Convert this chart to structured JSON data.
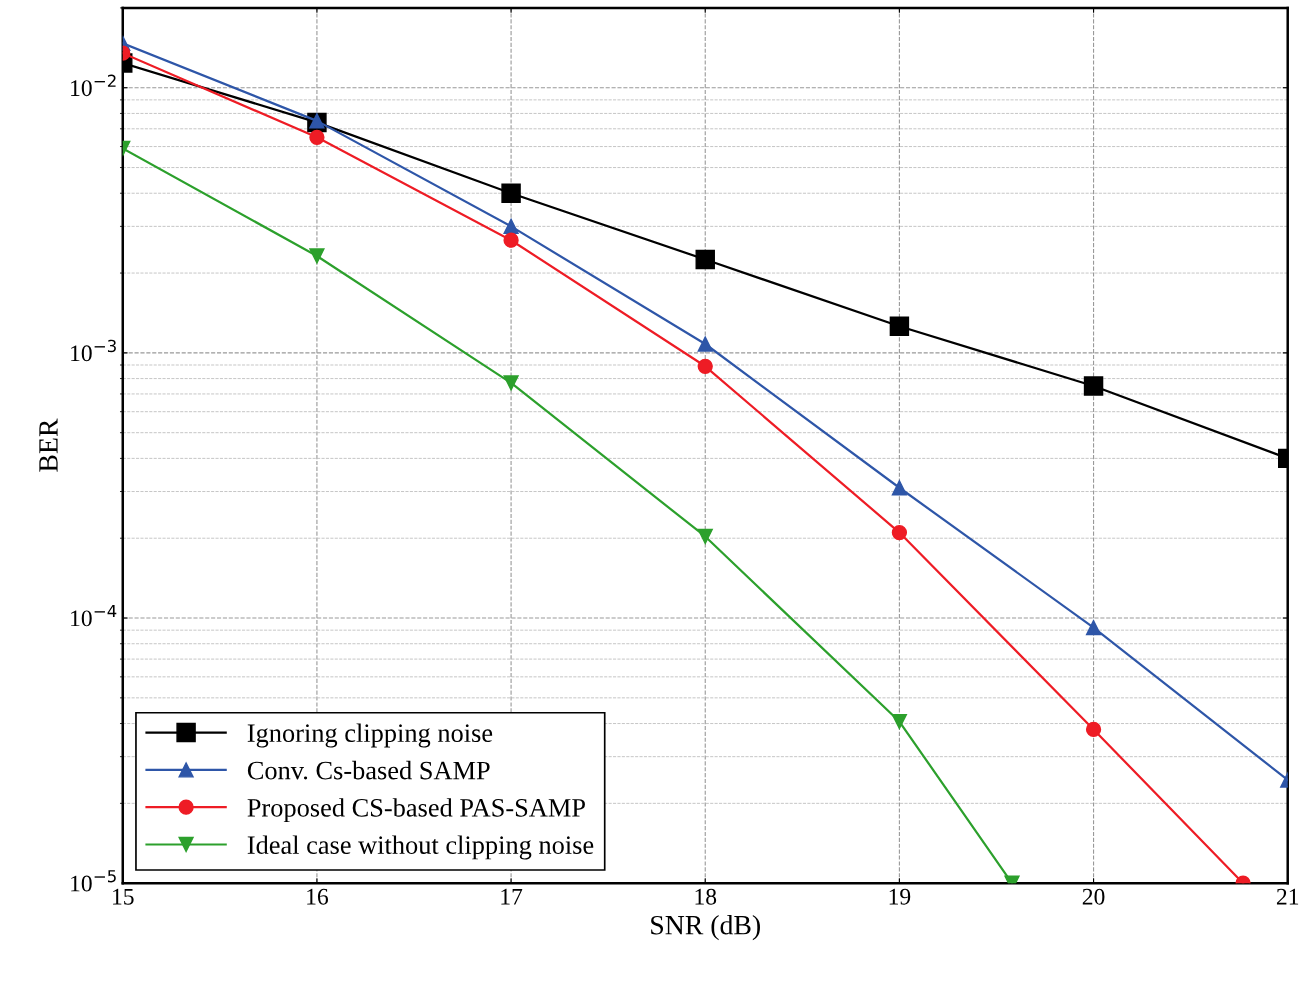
{
  "chart_data": {
    "type": "line",
    "xlabel": "SNR (dB)",
    "ylabel": "BER",
    "log": "y",
    "grid": true,
    "legend": "bottom left",
    "line_style": "solid",
    "x": [
      15,
      16,
      17,
      18,
      19,
      20,
      21
    ],
    "xlim": [
      15,
      21
    ],
    "xticks": [
      15,
      16,
      17,
      18,
      19,
      20,
      21
    ],
    "ylim": [
      1e-05,
      0.02
    ],
    "yticks": [
      {
        "value": 1e-05,
        "label": "10$^{−5}$"
      },
      {
        "value": 0.0001,
        "label": "10$^{−4}$"
      },
      {
        "value": 0.001,
        "label": "10$^{−3}$"
      },
      {
        "value": 0.01,
        "label": "10$^{−2}$"
      }
    ],
    "series": [
      {
        "name": "Ignoring clipping noise",
        "color": "#000000",
        "marker": "square",
        "values": [
          0.0124,
          0.0074,
          0.004,
          0.00225,
          0.00126,
          0.00075,
          0.0004
        ]
      },
      {
        "name": "Conv. Cs-based SAMP",
        "color": "#2e56a8",
        "marker": "triangle",
        "values": [
          0.0147,
          0.0075,
          0.003,
          0.00108,
          0.00031,
          9.2e-05,
          2.45e-05
        ]
      },
      {
        "name": "Proposed CS-based PAS-SAMP",
        "color": "#ee1c25",
        "marker": "circle",
        "x": [
          15,
          16,
          17,
          18,
          19,
          20,
          20.77
        ],
        "values": [
          0.0135,
          0.0065,
          0.00266,
          0.00089,
          0.00021,
          3.8e-05,
          1e-05
        ]
      },
      {
        "name": "Ideal case without clipping noise",
        "color": "#2ca02c",
        "marker": "triangle_down",
        "x": [
          15,
          16,
          17,
          18,
          19,
          19.58
        ],
        "values": [
          0.0059,
          0.00232,
          0.00077,
          0.000203,
          4.07e-05,
          1e-05
        ]
      }
    ]
  }
}
